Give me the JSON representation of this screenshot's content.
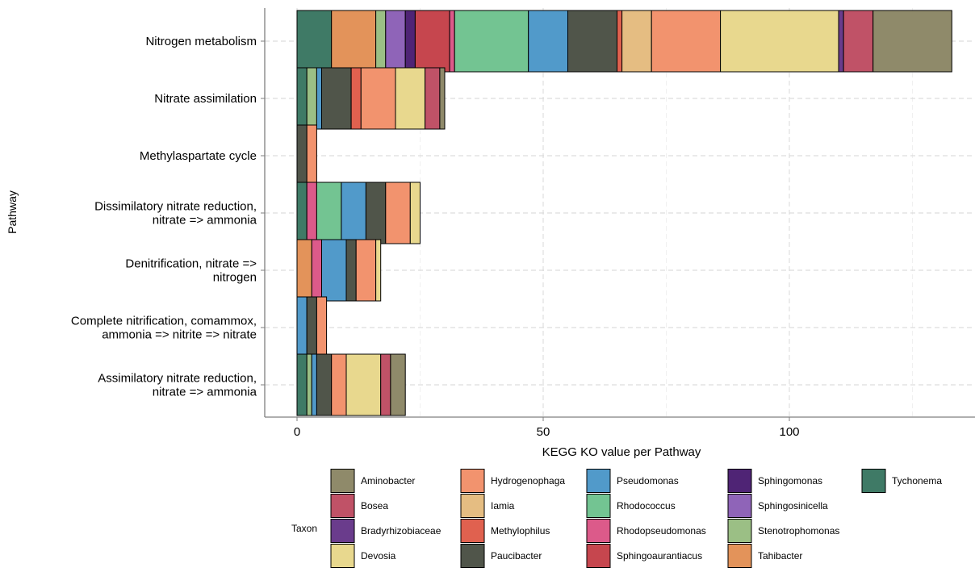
{
  "chart_data": {
    "type": "bar",
    "orientation": "horizontal",
    "stacked": true,
    "title": "",
    "xlabel": "KEGG KO value per Pathway",
    "ylabel": "Pathway",
    "xlim": [
      -6.5,
      134.5
    ],
    "xticks": [
      0,
      50,
      100
    ],
    "grid": true,
    "legend_title": "Taxon",
    "legend_position": "bottom",
    "categories": [
      "Nitrogen metabolism",
      "Nitrate assimilation",
      "Methylaspartate cycle",
      "Dissimilatory nitrate reduction,\nnitrate => ammonia",
      "Denitrification, nitrate =>\nnitrogen",
      "Complete nitrification, comammox,\nammonia => nitrite => nitrate",
      "Assimilatory nitrate reduction,\nnitrate => ammonia"
    ],
    "series": [
      {
        "name": "Tychonema",
        "color": "#3F7A66",
        "values": [
          7,
          2,
          0,
          2,
          0,
          0,
          2
        ]
      },
      {
        "name": "Tahibacter",
        "color": "#E3935A",
        "values": [
          9,
          0,
          0,
          0,
          3,
          0,
          0
        ]
      },
      {
        "name": "Stenotrophomonas",
        "color": "#9BBF85",
        "values": [
          2,
          2,
          0,
          0,
          0,
          0,
          1
        ]
      },
      {
        "name": "Sphingosinicella",
        "color": "#8F64B8",
        "values": [
          4,
          0,
          0,
          0,
          0,
          0,
          0
        ]
      },
      {
        "name": "Sphingomonas",
        "color": "#4F2475",
        "values": [
          2,
          0,
          0,
          0,
          0,
          0,
          0
        ]
      },
      {
        "name": "Sphingoaurantiacus",
        "color": "#C6464E",
        "values": [
          7,
          0,
          0,
          0,
          0,
          0,
          0
        ]
      },
      {
        "name": "Rhodopseudomonas",
        "color": "#DC5A8A",
        "values": [
          1,
          0,
          0,
          2,
          2,
          0,
          0
        ]
      },
      {
        "name": "Rhodococcus",
        "color": "#73C492",
        "values": [
          15,
          0,
          0,
          5,
          0,
          0,
          0
        ]
      },
      {
        "name": "Pseudomonas",
        "color": "#519ACA",
        "values": [
          8,
          1,
          0,
          5,
          5,
          2,
          1
        ]
      },
      {
        "name": "Paucibacter",
        "color": "#50554A",
        "values": [
          10,
          6,
          2,
          4,
          2,
          2,
          3
        ]
      },
      {
        "name": "Methylophilus",
        "color": "#E0614F",
        "values": [
          1,
          2,
          0,
          0,
          0,
          0,
          0
        ]
      },
      {
        "name": "Iamia",
        "color": "#E5BD82",
        "values": [
          6,
          0,
          0,
          0,
          0,
          0,
          0
        ]
      },
      {
        "name": "Hydrogenophaga",
        "color": "#F2936E",
        "values": [
          14,
          7,
          2,
          5,
          4,
          2,
          3
        ]
      },
      {
        "name": "Devosia",
        "color": "#E8D88E",
        "values": [
          24,
          6,
          0,
          2,
          1,
          0,
          7
        ]
      },
      {
        "name": "Bradyrhizobiaceae",
        "color": "#6A3C8C",
        "values": [
          1,
          0,
          0,
          0,
          0,
          0,
          0
        ]
      },
      {
        "name": "Bosea",
        "color": "#C05267",
        "values": [
          6,
          3,
          0,
          0,
          0,
          0,
          2
        ]
      },
      {
        "name": "Aminobacter",
        "color": "#8F8A6A",
        "values": [
          16,
          1,
          0,
          0,
          0,
          0,
          3
        ]
      }
    ],
    "legend_order": [
      "Aminobacter",
      "Bosea",
      "Bradyrhizobiaceae",
      "Devosia",
      "Hydrogenophaga",
      "Iamia",
      "Methylophilus",
      "Paucibacter",
      "Pseudomonas",
      "Rhodococcus",
      "Rhodopseudomonas",
      "Sphingoaurantiacus",
      "Sphingomonas",
      "Sphingosinicella",
      "Stenotrophomonas",
      "Tahibacter",
      "Tychonema"
    ]
  }
}
